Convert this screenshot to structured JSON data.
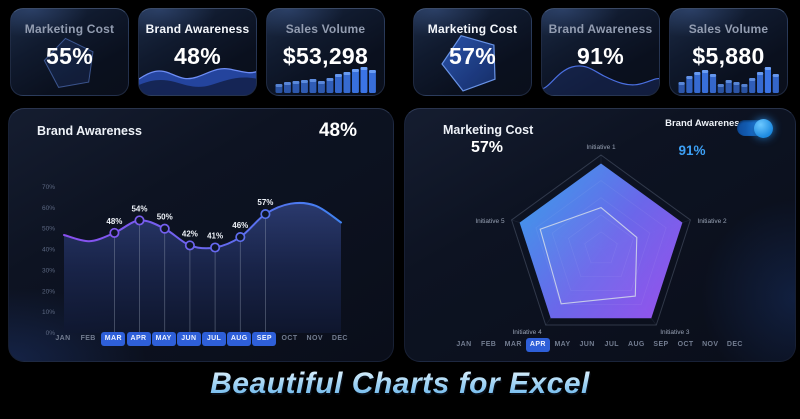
{
  "page": {
    "footer_title": "Beautiful Charts for Excel",
    "accent": "#2e5fd8",
    "background": "#000000"
  },
  "cards": [
    {
      "title": "Marketing Cost",
      "value": "55%",
      "deco": "pentagon-outline",
      "highlighted": false
    },
    {
      "title": "Brand Awareness",
      "value": "48%",
      "deco": "wave-filled",
      "highlighted": true
    },
    {
      "title": "Sales Volume",
      "value": "$53,298",
      "deco": "bars-ascending",
      "highlighted": false,
      "bars": [
        9,
        11,
        12,
        13,
        14,
        12,
        15,
        19,
        21,
        24,
        26,
        23
      ]
    },
    {
      "title": "Marketing Cost",
      "value": "57%",
      "deco": "pentagon-filled",
      "highlighted": true
    },
    {
      "title": "Brand Awareness",
      "value": "91%",
      "deco": "wave-line",
      "highlighted": false
    },
    {
      "title": "Sales Volume",
      "value": "$5,880",
      "deco": "bars-varied",
      "highlighted": false,
      "bars": [
        11,
        17,
        21,
        23,
        19,
        9,
        13,
        11,
        9,
        15,
        21,
        26,
        19
      ]
    }
  ],
  "area_panel": {
    "title": "Brand Awareness",
    "value": "48%",
    "months": [
      "JAN",
      "FEB",
      "MAR",
      "APR",
      "MAY",
      "JUN",
      "JUL",
      "AUG",
      "SEP",
      "OCT",
      "NOV",
      "DEC"
    ],
    "active_months": [
      "MAR",
      "APR",
      "MAY",
      "JUN",
      "JUL",
      "AUG",
      "SEP"
    ]
  },
  "radar_panel": {
    "title": "Marketing Cost",
    "value": "57%",
    "toggle_label": "Brand Awareness",
    "toggle_value": "91%",
    "toggle_on": true,
    "axes": [
      "Initiative 1",
      "Initiative 2",
      "Initiative 3",
      "Initiative 4",
      "Initiative 5"
    ],
    "months": [
      "JAN",
      "FEB",
      "MAR",
      "APR",
      "MAY",
      "JUN",
      "JUL",
      "AUG",
      "SEP",
      "OCT",
      "NOV",
      "DEC"
    ],
    "active_months": [
      "APR"
    ]
  },
  "chart_data": [
    {
      "type": "area",
      "title": "Brand Awareness",
      "current_value": "48%",
      "x": [
        "JAN",
        "FEB",
        "MAR",
        "APR",
        "MAY",
        "JUN",
        "JUL",
        "AUG",
        "SEP",
        "OCT",
        "NOV",
        "DEC"
      ],
      "values": [
        47,
        44,
        48,
        54,
        50,
        42,
        41,
        46,
        57,
        62,
        61,
        53
      ],
      "labeled": {
        "MAR": "48%",
        "APR": "54%",
        "MAY": "50%",
        "JUN": "42%",
        "JUL": "41%",
        "AUG": "46%",
        "SEP": "57%"
      },
      "highlighted_months": [
        "MAR",
        "APR",
        "MAY",
        "JUN",
        "JUL",
        "AUG",
        "SEP"
      ],
      "ylabel_ticks": [
        "0%",
        "10%",
        "20%",
        "30%",
        "40%",
        "50%",
        "60%",
        "70%"
      ],
      "ylim": [
        0,
        70
      ],
      "grid": false,
      "legend": "none",
      "line_colors": [
        "#8a50f0",
        "#3f82f0"
      ]
    },
    {
      "type": "radar",
      "title": "Marketing Cost",
      "categories": [
        "Initiative 1",
        "Initiative 2",
        "Initiative 3",
        "Initiative 4",
        "Initiative 5"
      ],
      "series": [
        {
          "name": "Brand Awareness",
          "display_value": "91%",
          "values": [
            91,
            91,
            91,
            91,
            91
          ],
          "style": "gradient-fill"
        },
        {
          "name": "Marketing Cost",
          "display_value": "57%",
          "values": [
            44,
            40,
            62,
            72,
            68
          ],
          "style": "light-outline"
        }
      ],
      "rings": 5,
      "range": [
        0,
        100
      ],
      "highlighted_months": [
        "APR"
      ],
      "legend": "toggle-top-right"
    }
  ]
}
